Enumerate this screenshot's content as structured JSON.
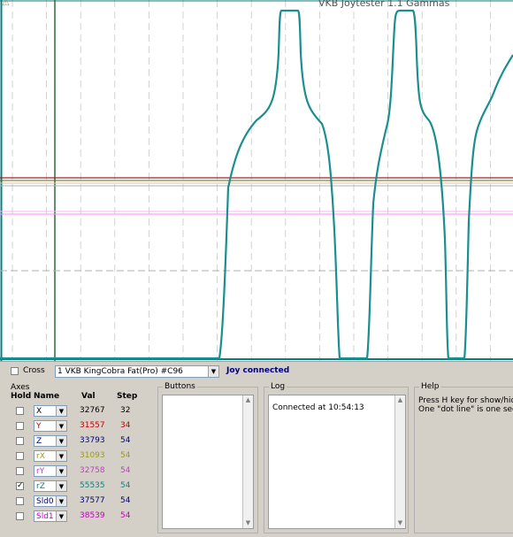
{
  "window": {
    "title": "VKB Joytester 1.1 Gammas"
  },
  "plot": {
    "frame_color": "#008080",
    "trace_color": "#1b8f8f",
    "h_lines": [
      {
        "name": "red-line",
        "color": "#a02020"
      },
      {
        "name": "brown-line",
        "color": "#8a6a30"
      },
      {
        "name": "olive-line",
        "color": "#b0b070"
      },
      {
        "name": "pink-line",
        "color": "#ff88ff"
      },
      {
        "name": "grey-dashed-line",
        "color": "#a0a0a0"
      }
    ]
  },
  "controls": {
    "cross_label": "Cross",
    "device_selected": "1 VKB KingCobra Fat(Pro)  #C96",
    "status": "Joy connected",
    "status_color": "#000080"
  },
  "axes": {
    "header_line1": "Axes",
    "col_hold": "Hold",
    "col_name": "Name",
    "col_val": "Val",
    "col_step": "Step",
    "rows": [
      {
        "checked": false,
        "name": "X",
        "val": "32767",
        "step": "32",
        "color": "#000000"
      },
      {
        "checked": false,
        "name": "Y",
        "val": "31557",
        "step": "34",
        "color": "#c00000"
      },
      {
        "checked": false,
        "name": "Z",
        "val": "33793",
        "step": "54",
        "color": "#000080"
      },
      {
        "checked": false,
        "name": "rX",
        "val": "31093",
        "step": "54",
        "color": "#9a9a20"
      },
      {
        "checked": false,
        "name": "rY",
        "val": "32758",
        "step": "54",
        "color": "#c040c0"
      },
      {
        "checked": true,
        "name": "rZ",
        "val": "55535",
        "step": "54",
        "color": "#108080"
      },
      {
        "checked": false,
        "name": "Sld0",
        "val": "37577",
        "step": "54",
        "color": "#000080"
      },
      {
        "checked": false,
        "name": "Sld1",
        "val": "38539",
        "step": "54",
        "color": "#c000c0"
      }
    ]
  },
  "buttons_group": {
    "label": "Buttons"
  },
  "log_group": {
    "label": "Log",
    "lines": [
      "Connected at 10:54:13"
    ]
  },
  "help_group": {
    "label": "Help",
    "line1": "Press H key for show/hid",
    "line2": "One \"dot line\" is one seco"
  }
}
